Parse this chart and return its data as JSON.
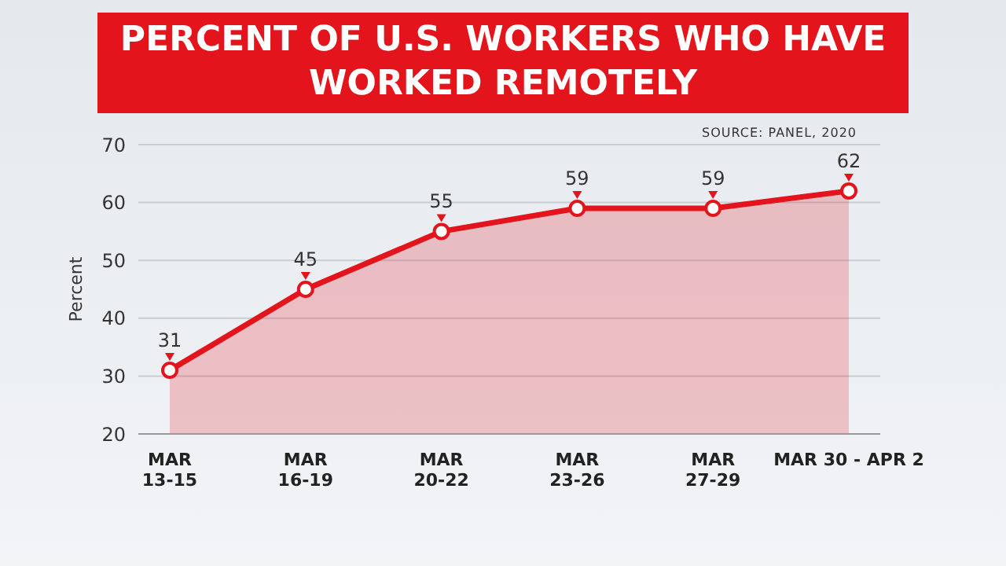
{
  "chart_data": {
    "type": "area",
    "title": "PERCENT OF U.S. WORKERS WHO HAVE WORKED REMOTELY",
    "annotations": [
      "SOURCE: PANEL, 2020"
    ],
    "ylabel": "Percent",
    "categories": [
      "MAR\n13-15",
      "MAR\n16-19",
      "MAR\n20-22",
      "MAR\n23-26",
      "MAR\n27-29",
      "MAR 30 - APR 2"
    ],
    "series": [
      {
        "color": "#e3141c",
        "values": [
          31,
          45,
          55,
          59,
          59,
          62
        ]
      }
    ],
    "ylim": [
      20,
      70
    ],
    "yticks": [
      20,
      30,
      40,
      50,
      60,
      70
    ],
    "grid": "y",
    "marker": "circle",
    "data_labels": true
  }
}
